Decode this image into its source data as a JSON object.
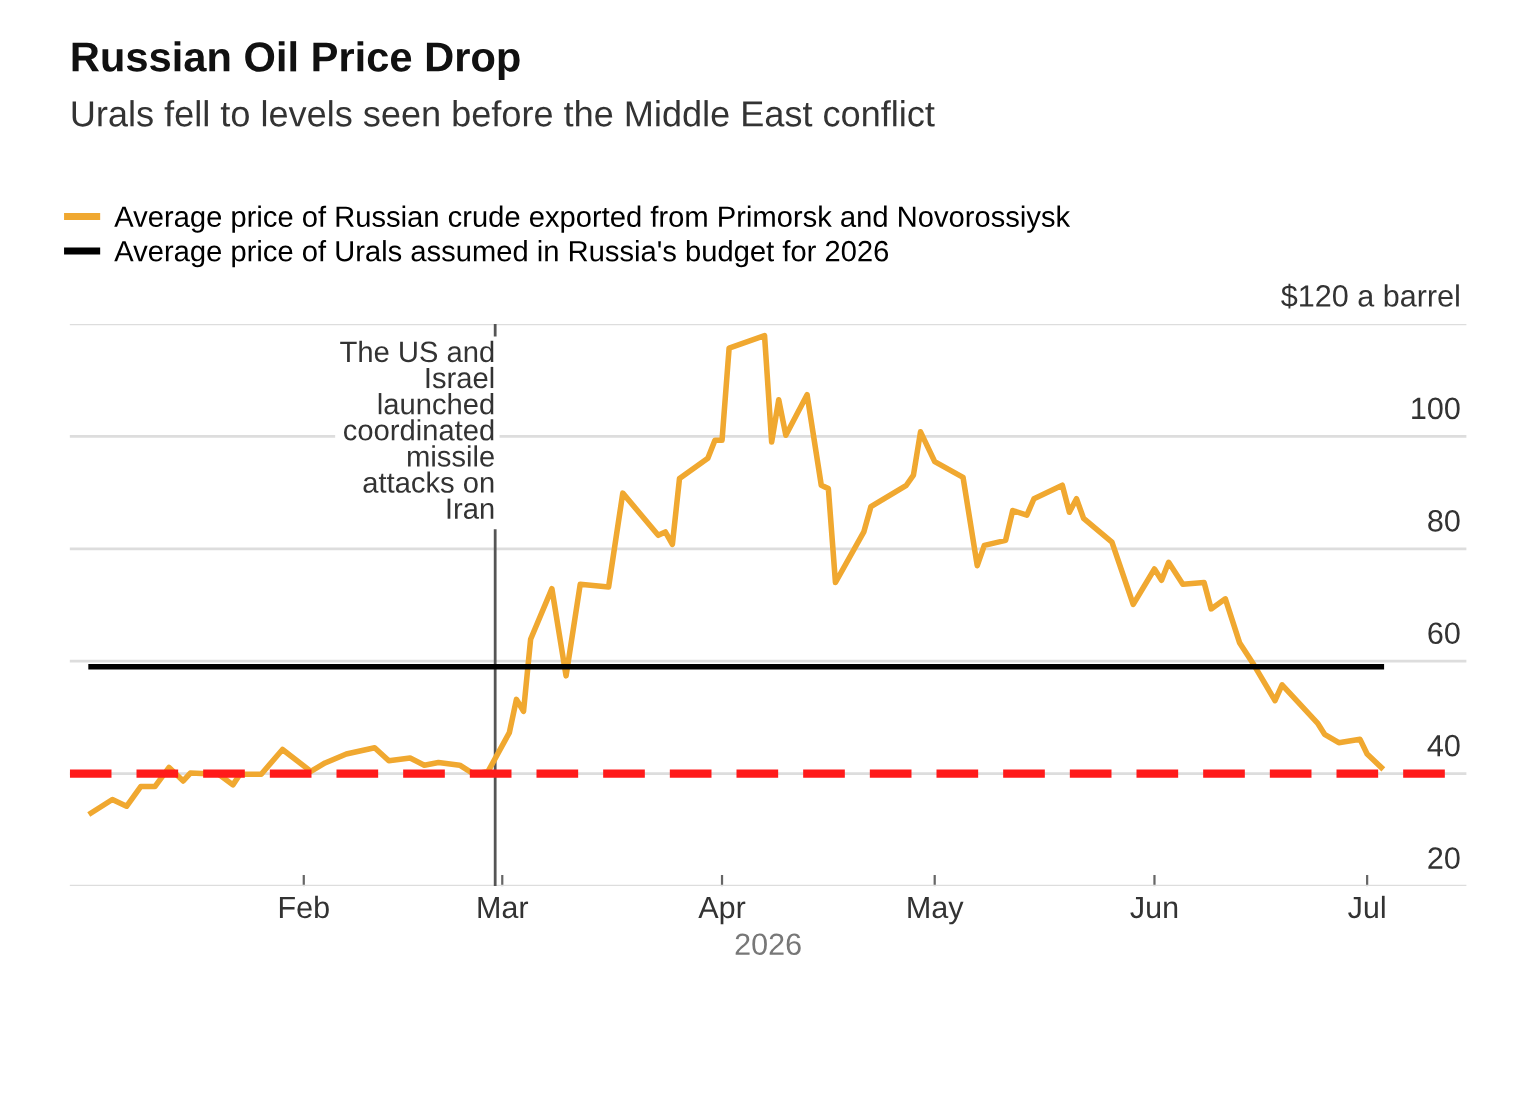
{
  "chart_data": {
    "type": "line",
    "title": "Russian Oil Price Drop",
    "subtitle": "Urals fell to levels seen before the Middle East conflict",
    "xlabel": "2026",
    "series": [
      {
        "name": "Average price of Russian crude exported from Primorsk and Novorossiysk",
        "color": "#f0a830",
        "x": [
          "2026-01-02",
          "2026-01-05",
          "2026-01-07",
          "2026-01-09",
          "2026-01-11",
          "2026-01-13",
          "2026-01-15",
          "2026-01-16",
          "2026-01-20",
          "2026-01-22",
          "2026-01-23",
          "2026-01-26",
          "2026-01-29",
          "2026-02-02",
          "2026-02-04",
          "2026-02-07",
          "2026-02-11",
          "2026-02-13",
          "2026-02-16",
          "2026-02-18",
          "2026-02-20",
          "2026-02-23",
          "2026-02-25",
          "2026-02-27",
          "2026-03-02",
          "2026-03-03",
          "2026-03-04",
          "2026-03-05",
          "2026-03-08",
          "2026-03-10",
          "2026-03-12",
          "2026-03-16",
          "2026-03-18",
          "2026-03-23",
          "2026-03-24",
          "2026-03-25",
          "2026-03-26",
          "2026-03-30",
          "2026-03-31",
          "2026-04-01",
          "2026-04-02",
          "2026-04-07",
          "2026-04-08",
          "2026-04-09",
          "2026-04-10",
          "2026-04-13",
          "2026-04-15",
          "2026-04-16",
          "2026-04-17",
          "2026-04-21",
          "2026-04-22",
          "2026-04-27",
          "2026-04-28",
          "2026-04-29",
          "2026-05-01",
          "2026-05-05",
          "2026-05-07",
          "2026-05-08",
          "2026-05-11",
          "2026-05-12",
          "2026-05-14",
          "2026-05-15",
          "2026-05-19",
          "2026-05-20",
          "2026-05-21",
          "2026-05-22",
          "2026-05-26",
          "2026-05-29",
          "2026-06-01",
          "2026-06-02",
          "2026-06-03",
          "2026-06-05",
          "2026-06-08",
          "2026-06-09",
          "2026-06-11",
          "2026-06-13",
          "2026-06-15",
          "2026-06-18",
          "2026-06-19",
          "2026-06-24",
          "2026-06-25",
          "2026-06-27",
          "2026-06-30",
          "2026-07-01",
          "2026-07-03"
        ],
        "values": [
          33,
          35.4,
          34.2,
          37.7,
          37.7,
          41.1,
          38.7,
          40.1,
          39.9,
          38,
          39.9,
          39.9,
          44.3,
          40.4,
          41.9,
          43.5,
          44.6,
          42.3,
          42.8,
          41.5,
          42,
          41.5,
          39.9,
          40.4,
          47.3,
          53.2,
          51.1,
          63.9,
          72.9,
          57.4,
          73.7,
          73.2,
          89.9,
          82.4,
          83,
          80.8,
          92.5,
          96.1,
          99.3,
          99.3,
          115.7,
          117.9,
          99,
          106.5,
          100.2,
          107.4,
          91.3,
          90.7,
          74,
          83,
          87.5,
          91.3,
          93.1,
          100.8,
          95.5,
          92.7,
          77,
          80.6,
          81.5,
          86.8,
          86,
          88.9,
          91.3,
          86.5,
          88.9,
          85.4,
          81.2,
          70.1,
          76.4,
          74.4,
          77.6,
          73.7,
          74,
          69.3,
          71.1,
          63.3,
          59.4,
          53,
          55.8,
          49,
          47,
          45.5,
          46.1,
          43.5,
          41.1
        ]
      },
      {
        "name": "Average price of Urals assumed in Russia's budget for 2026",
        "color": "#000000",
        "x": [
          "2026-01-02",
          "2026-07-03"
        ],
        "values": [
          59,
          59
        ]
      }
    ],
    "xlim": [
      "2025-12-30",
      "2026-07-15"
    ],
    "xticks": [
      {
        "value": "2026-02-01",
        "label": "Feb"
      },
      {
        "value": "2026-03-01",
        "label": "Mar"
      },
      {
        "value": "2026-04-01",
        "label": "Apr"
      },
      {
        "value": "2026-05-01",
        "label": "May"
      },
      {
        "value": "2026-06-01",
        "label": "Jun"
      },
      {
        "value": "2026-07-01",
        "label": "Jul"
      }
    ],
    "ylim": [
      20,
      120
    ],
    "yticks": [
      20,
      40,
      60,
      80,
      100,
      {
        "value": 120,
        "label": "$120 a barrel"
      }
    ],
    "ref_lines": [
      {
        "axis": "x",
        "value": "2026-02-28",
        "label": "The US and\nIsrael\nlaunched\ncoordinated\nmissile\nattacks on\nIran",
        "color": "#555555"
      },
      {
        "axis": "y",
        "value": 40,
        "label": null,
        "color": "#ff1a1a",
        "line_style": "dashed"
      }
    ],
    "grid": "y",
    "legend": "top left",
    "marker": "none",
    "line_style": "solid"
  }
}
